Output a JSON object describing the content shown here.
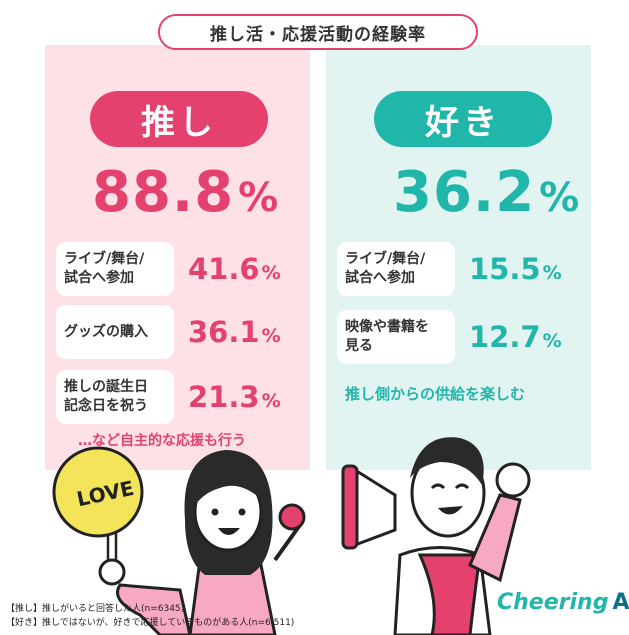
{
  "title": "推し活・応援活動の経験率",
  "oshi": {
    "label": "推し",
    "rate": "88.8",
    "items": [
      {
        "label": "ライブ/舞台/\n試合へ参加",
        "value": "41.6"
      },
      {
        "label": "グッズの購入",
        "value": "36.1"
      },
      {
        "label": "推しの誕生日\n記念日を祝う",
        "value": "21.3"
      }
    ],
    "note": "…など自主的な応援も行う"
  },
  "suki": {
    "label": "好き",
    "rate": "36.2",
    "items": [
      {
        "label": "ライブ/舞台/\n試合へ参加",
        "value": "15.5"
      },
      {
        "label": "映像や書籍を\n見る",
        "value": "12.7"
      }
    ],
    "note": "推し側からの供給を楽しむ"
  },
  "percent_sign": "%",
  "illustration": {
    "sign_text": "LOVE"
  },
  "footer": {
    "line1": "【推し】推しがいると回答した人(n=6345)",
    "line2": "【好き】推しではないが、好きで応援しているものがある人(n=6,511)"
  },
  "logo": {
    "main": "Cheering",
    "suffix": "AD"
  },
  "colors": {
    "pink": "#e5416f",
    "teal": "#21b6aa",
    "pink_bg": "#fde1e7",
    "teal_bg": "#e2f4f2"
  }
}
